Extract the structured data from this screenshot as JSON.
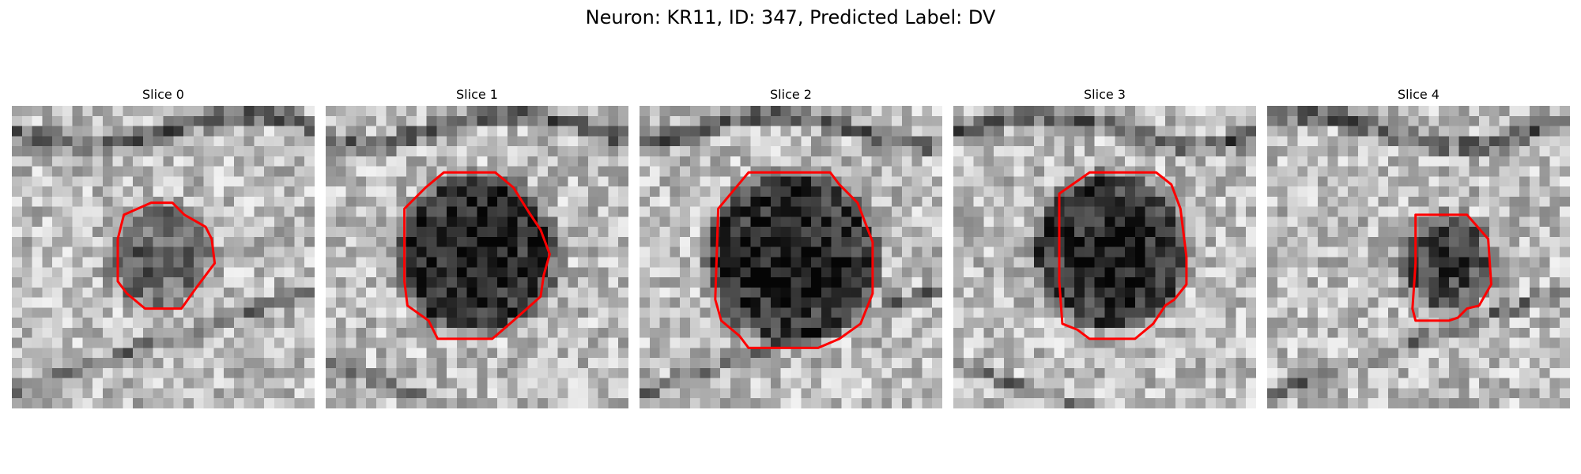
{
  "figure": {
    "title": "Neuron: KR11, ID: 347, Predicted Label: DV",
    "contour_color": "#ff0000",
    "colormap": "grayscale",
    "panels": [
      {
        "title": "Slice 0"
      },
      {
        "title": "Slice 1"
      },
      {
        "title": "Slice 2"
      },
      {
        "title": "Slice 3"
      },
      {
        "title": "Slice 4"
      }
    ]
  }
}
